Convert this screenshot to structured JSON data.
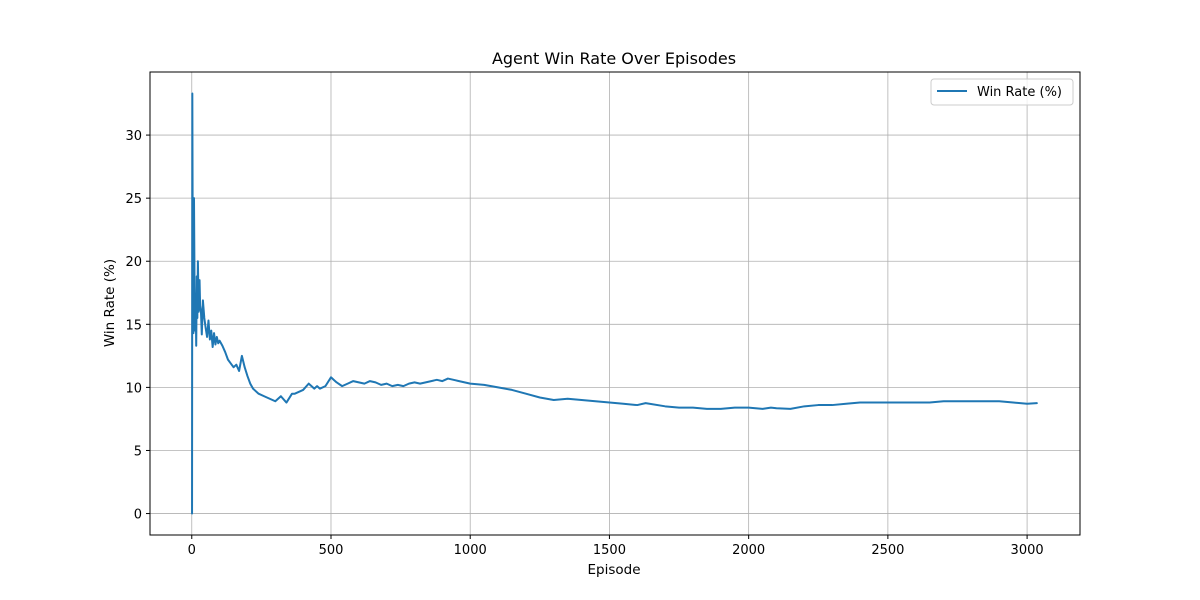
{
  "chart_data": {
    "type": "line",
    "title": "Agent Win Rate Over Episodes",
    "xlabel": "Episode",
    "ylabel": "Win Rate (%)",
    "xlim": [
      -150,
      3190
    ],
    "ylim": [
      -1.7,
      35.0
    ],
    "x_ticks": [
      0,
      500,
      1000,
      1500,
      2000,
      2500,
      3000
    ],
    "y_ticks": [
      0,
      5,
      10,
      15,
      20,
      25,
      30
    ],
    "grid": true,
    "legend_position": "upper right",
    "color": "#1f77b4",
    "series": [
      {
        "name": "Win Rate (%)",
        "x": [
          1,
          2,
          3,
          4,
          5,
          6,
          8,
          10,
          12,
          14,
          16,
          18,
          20,
          22,
          25,
          28,
          30,
          33,
          36,
          40,
          45,
          50,
          55,
          60,
          65,
          70,
          75,
          80,
          85,
          90,
          95,
          100,
          110,
          120,
          130,
          140,
          150,
          160,
          170,
          180,
          190,
          200,
          210,
          220,
          240,
          260,
          280,
          300,
          320,
          340,
          360,
          370,
          380,
          400,
          420,
          440,
          450,
          460,
          480,
          500,
          510,
          520,
          540,
          560,
          580,
          600,
          620,
          640,
          660,
          680,
          700,
          720,
          740,
          760,
          780,
          800,
          820,
          840,
          860,
          880,
          900,
          920,
          940,
          960,
          980,
          1000,
          1050,
          1100,
          1150,
          1200,
          1250,
          1300,
          1350,
          1400,
          1450,
          1500,
          1550,
          1600,
          1630,
          1700,
          1750,
          1800,
          1850,
          1900,
          1950,
          2000,
          2050,
          2080,
          2100,
          2150,
          2200,
          2250,
          2300,
          2350,
          2400,
          2450,
          2500,
          2550,
          2600,
          2650,
          2700,
          2750,
          2800,
          2850,
          2900,
          2950,
          3000,
          3035
        ],
        "y": [
          0,
          33.3,
          25,
          20,
          16.7,
          14.3,
          25,
          18,
          14.5,
          17,
          13.3,
          18.8,
          15.5,
          20,
          16,
          18.5,
          16.5,
          16,
          14.2,
          16.9,
          15.5,
          14.7,
          14,
          15.3,
          13.8,
          14.5,
          13.2,
          14.3,
          13.4,
          14,
          13.5,
          13.7,
          13.3,
          12.8,
          12.2,
          11.9,
          11.6,
          11.8,
          11.3,
          12.5,
          11.6,
          10.9,
          10.3,
          9.9,
          9.5,
          9.3,
          9.1,
          8.9,
          9.3,
          8.8,
          9.5,
          9.5,
          9.6,
          9.8,
          10.3,
          9.9,
          10.1,
          9.9,
          10.1,
          10.8,
          10.6,
          10.4,
          10.1,
          10.3,
          10.5,
          10.4,
          10.3,
          10.5,
          10.4,
          10.2,
          10.3,
          10.1,
          10.2,
          10.1,
          10.3,
          10.4,
          10.3,
          10.4,
          10.5,
          10.6,
          10.5,
          10.7,
          10.6,
          10.5,
          10.4,
          10.3,
          10.2,
          10.0,
          9.8,
          9.5,
          9.2,
          9.0,
          9.1,
          9.0,
          8.9,
          8.8,
          8.7,
          8.6,
          8.75,
          8.5,
          8.4,
          8.4,
          8.3,
          8.3,
          8.4,
          8.4,
          8.3,
          8.4,
          8.35,
          8.3,
          8.5,
          8.6,
          8.6,
          8.7,
          8.8,
          8.8,
          8.8,
          8.8,
          8.8,
          8.8,
          8.9,
          8.9,
          8.9,
          8.9,
          8.9,
          8.8,
          8.7,
          8.75
        ]
      }
    ]
  }
}
